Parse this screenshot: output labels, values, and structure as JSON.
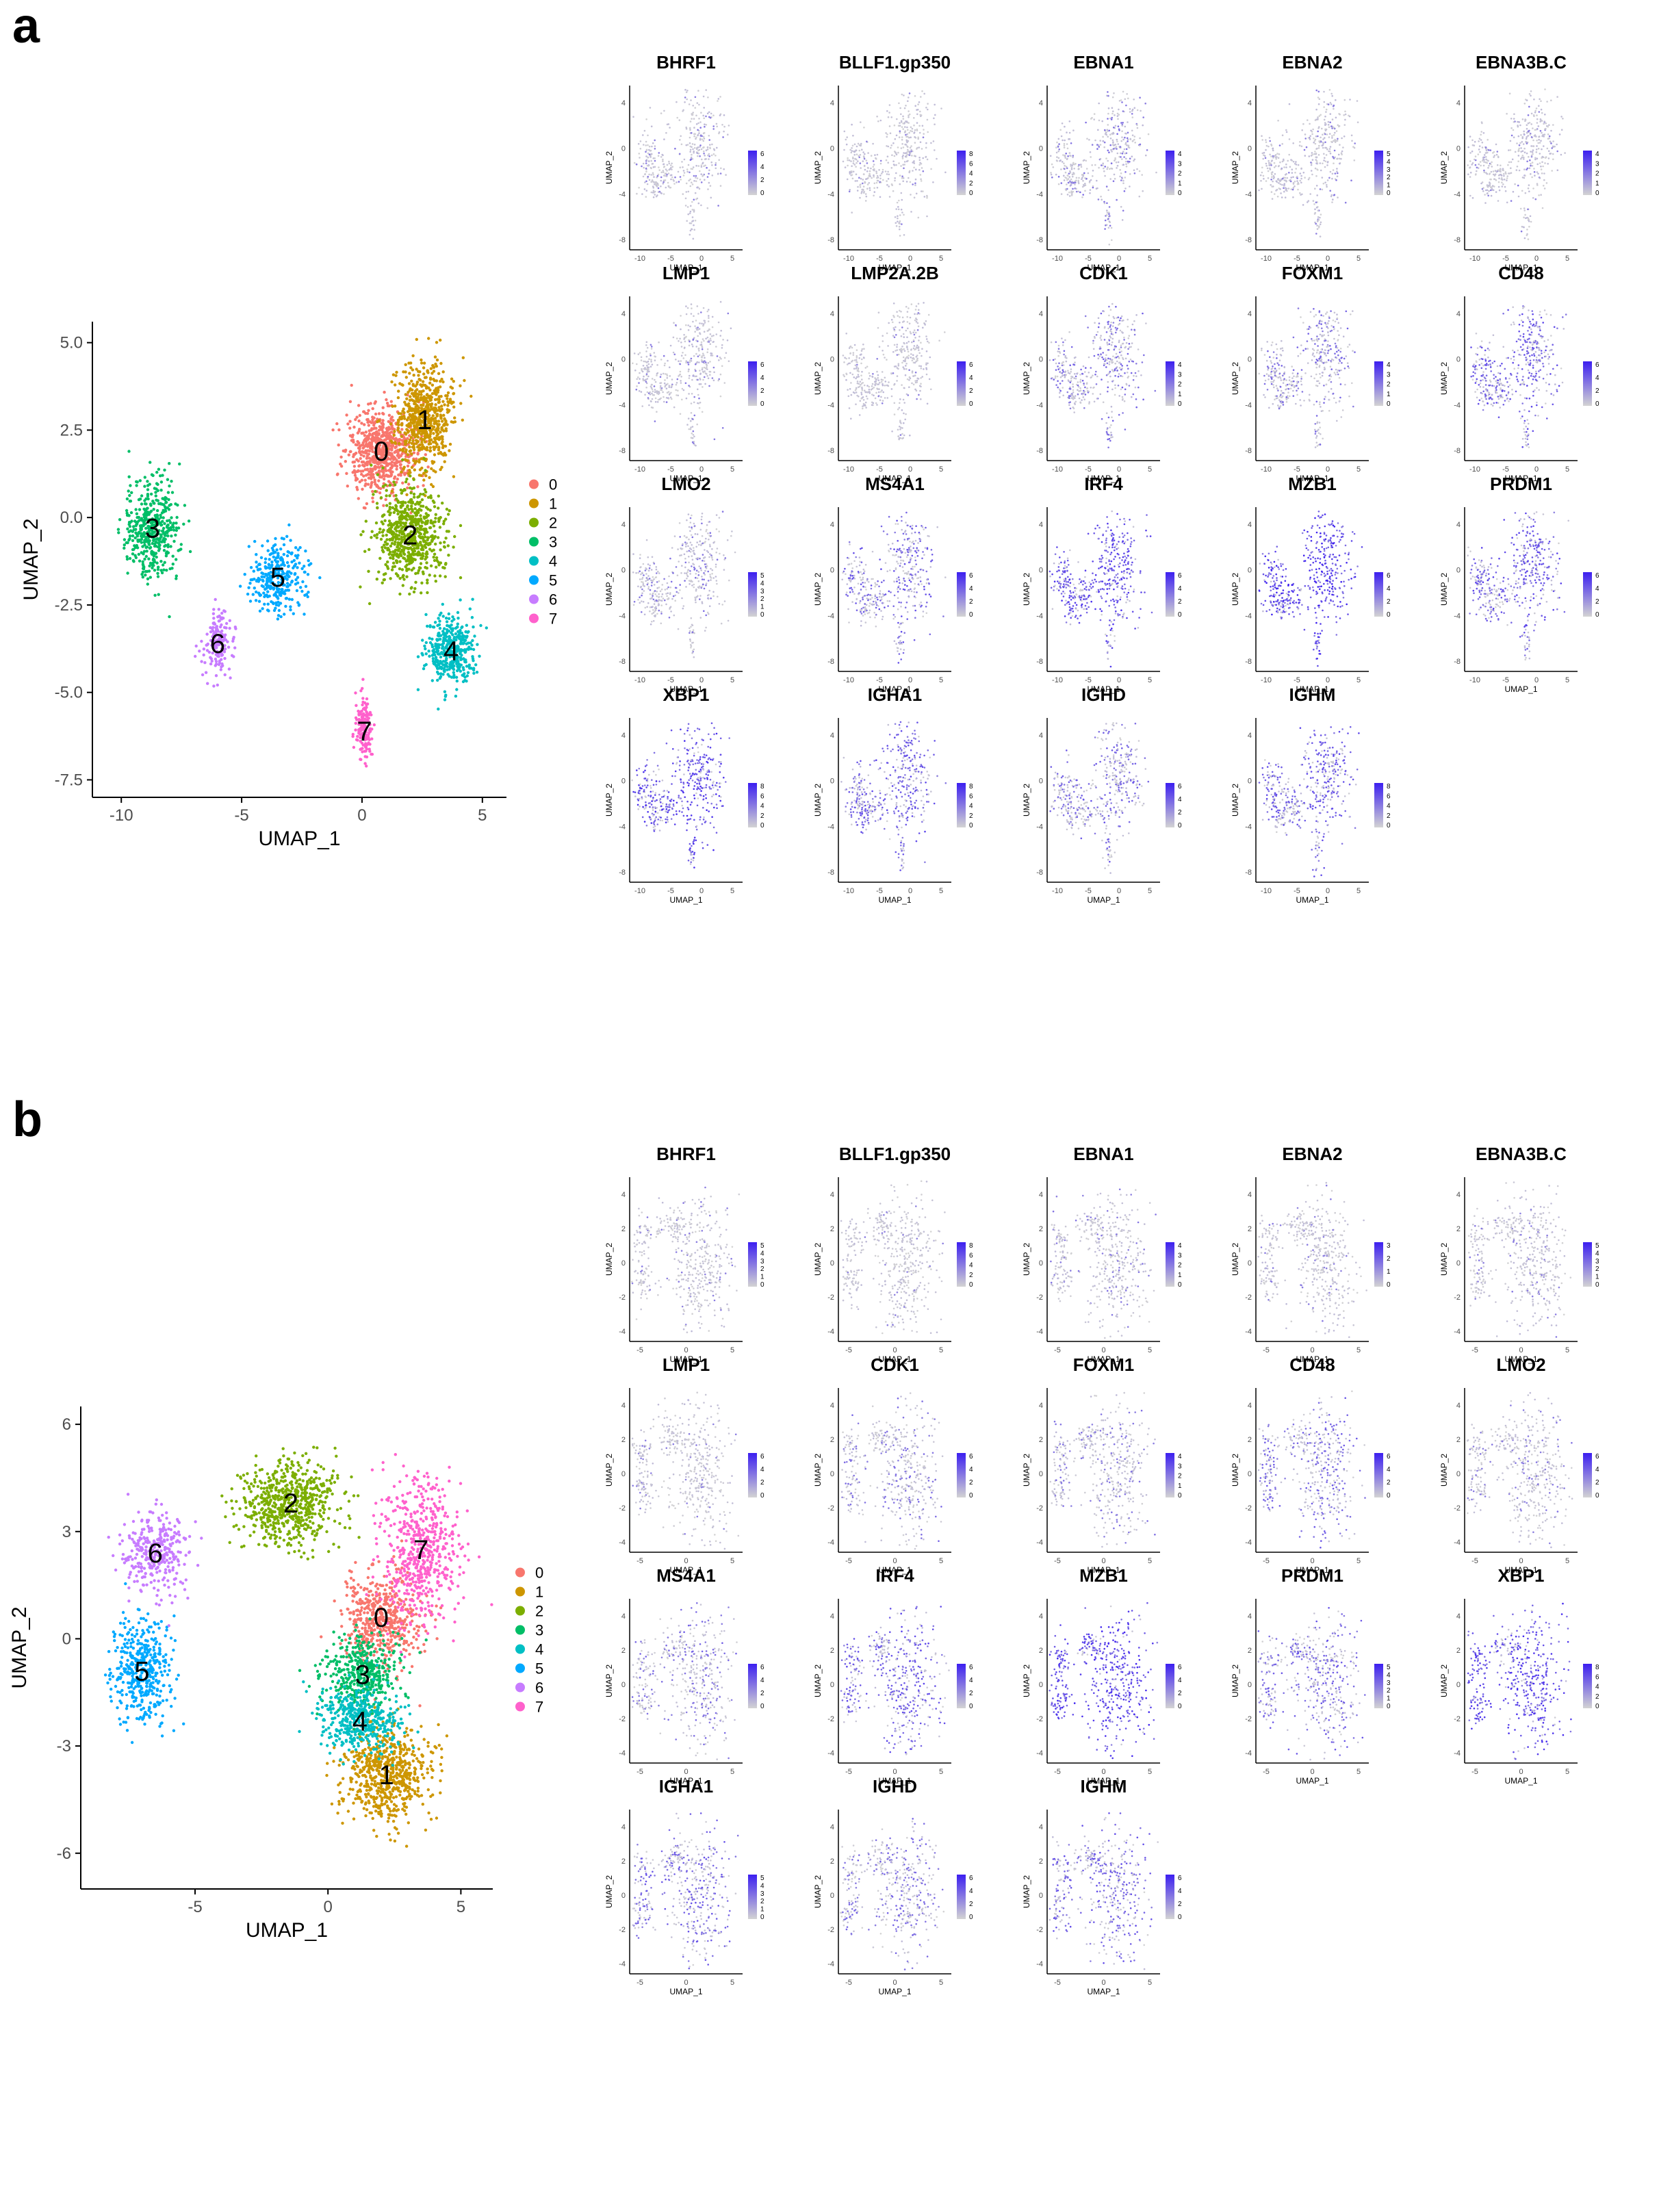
{
  "colors": {
    "clusters": [
      "#F8766D",
      "#CD9600",
      "#7CAE00",
      "#00BE67",
      "#00BFC4",
      "#00A9FF",
      "#C77CFF",
      "#FF61CC"
    ],
    "feature_low": "#D3D3D3",
    "feature_high": "#3C1FF0",
    "axis": "#000000"
  },
  "chart_data": [
    {
      "panel": "a",
      "type": "scatter",
      "subtype": "umap-cluster",
      "xlabel": "UMAP_1",
      "ylabel": "UMAP_2",
      "xlim": [
        -11.2,
        6.0
      ],
      "ylim": [
        -8.0,
        5.6
      ],
      "xticks": [
        "-10",
        "-5",
        "0",
        "5"
      ],
      "xtick_values": [
        -10,
        -5,
        0,
        5
      ],
      "yticks": [
        "5.0",
        "2.5",
        "0.0",
        "-2.5",
        "-5.0",
        "-7.5"
      ],
      "ytick_values": [
        5.0,
        2.5,
        0.0,
        -2.5,
        -5.0,
        -7.5
      ],
      "legend": [
        "0",
        "1",
        "2",
        "3",
        "4",
        "5",
        "6",
        "7"
      ],
      "clusters": [
        {
          "label": "0",
          "cx": 0.8,
          "cy": 1.9,
          "sx": 1.3,
          "sy": 1.1,
          "n": 700
        },
        {
          "label": "1",
          "cx": 2.6,
          "cy": 2.8,
          "sx": 1.1,
          "sy": 1.4,
          "n": 650
        },
        {
          "label": "2",
          "cx": 2.0,
          "cy": -0.5,
          "sx": 1.3,
          "sy": 1.2,
          "n": 650
        },
        {
          "label": "3",
          "cx": -8.7,
          "cy": -0.3,
          "sx": 1.0,
          "sy": 1.3,
          "n": 450
        },
        {
          "label": "4",
          "cx": 3.7,
          "cy": -3.8,
          "sx": 1.0,
          "sy": 0.9,
          "n": 400
        },
        {
          "label": "5",
          "cx": -3.5,
          "cy": -1.7,
          "sx": 1.1,
          "sy": 0.9,
          "n": 300
        },
        {
          "label": "6",
          "cx": -6.0,
          "cy": -3.6,
          "sx": 0.5,
          "sy": 0.8,
          "n": 160
        },
        {
          "label": "7",
          "cx": 0.1,
          "cy": -6.1,
          "sx": 0.35,
          "sy": 0.8,
          "n": 160
        }
      ]
    },
    {
      "panel": "b",
      "type": "scatter",
      "subtype": "umap-cluster",
      "xlabel": "UMAP_1",
      "ylabel": "UMAP_2",
      "xlim": [
        -9.3,
        6.2
      ],
      "ylim": [
        -7.0,
        6.5
      ],
      "xticks": [
        "-5",
        "0",
        "5"
      ],
      "xtick_values": [
        -5,
        0,
        5
      ],
      "yticks": [
        "6",
        "3",
        "0",
        "-3",
        "-6"
      ],
      "ytick_values": [
        6,
        3,
        0,
        -3,
        -6
      ],
      "legend": [
        "0",
        "1",
        "2",
        "3",
        "4",
        "5",
        "6",
        "7"
      ],
      "clusters": [
        {
          "label": "0",
          "cx": 2.0,
          "cy": 0.6,
          "sx": 1.3,
          "sy": 1.2,
          "n": 500
        },
        {
          "label": "1",
          "cx": 2.2,
          "cy": -3.8,
          "sx": 1.5,
          "sy": 1.2,
          "n": 650
        },
        {
          "label": "2",
          "cx": -1.4,
          "cy": 3.8,
          "sx": 1.7,
          "sy": 1.1,
          "n": 650
        },
        {
          "label": "3",
          "cx": 1.3,
          "cy": -1.0,
          "sx": 1.3,
          "sy": 1.0,
          "n": 420
        },
        {
          "label": "4",
          "cx": 1.2,
          "cy": -2.3,
          "sx": 1.4,
          "sy": 0.9,
          "n": 420
        },
        {
          "label": "5",
          "cx": -7.0,
          "cy": -0.9,
          "sx": 1.0,
          "sy": 1.3,
          "n": 420
        },
        {
          "label": "6",
          "cx": -6.5,
          "cy": 2.4,
          "sx": 1.1,
          "sy": 1.0,
          "n": 320
        },
        {
          "label": "7",
          "cx": 3.5,
          "cy": 2.5,
          "sx": 1.3,
          "sy": 1.8,
          "n": 550
        }
      ]
    },
    {
      "panel": "a",
      "type": "scatter",
      "subtype": "feature-grid",
      "xlabel": "UMAP_1",
      "ylabel": "UMAP_2",
      "xticks": [
        "-10",
        "-5",
        "0",
        "5"
      ],
      "yticks": [
        "4",
        "0",
        "-4",
        "-8"
      ],
      "features": [
        {
          "name": "BHRF1",
          "max": 6,
          "ticks": [
            "6",
            "4",
            "2",
            "0"
          ],
          "level": 0.12
        },
        {
          "name": "BLLF1.gp350",
          "max": 8,
          "ticks": [
            "8",
            "6",
            "4",
            "2",
            "0"
          ],
          "level": 0.04
        },
        {
          "name": "EBNA1",
          "max": 4,
          "ticks": [
            "4",
            "3",
            "2",
            "1",
            "0"
          ],
          "level": 0.2
        },
        {
          "name": "EBNA2",
          "max": 5,
          "ticks": [
            "5",
            "4",
            "3",
            "2",
            "1",
            "0"
          ],
          "level": 0.1
        },
        {
          "name": "EBNA3B.C",
          "max": 4,
          "ticks": [
            "4",
            "3",
            "2",
            "1",
            "0"
          ],
          "level": 0.1
        },
        {
          "name": "LMP1",
          "max": 6,
          "ticks": [
            "6",
            "4",
            "2",
            "0"
          ],
          "level": 0.12
        },
        {
          "name": "LMP2A.2B",
          "max": 6,
          "ticks": [
            "6",
            "4",
            "2",
            "0"
          ],
          "level": 0.05
        },
        {
          "name": "CDK1",
          "max": 4,
          "ticks": [
            "4",
            "3",
            "2",
            "1",
            "0"
          ],
          "level": 0.35
        },
        {
          "name": "FOXM1",
          "max": 4,
          "ticks": [
            "4",
            "3",
            "2",
            "1",
            "0"
          ],
          "level": 0.3
        },
        {
          "name": "CD48",
          "max": 6,
          "ticks": [
            "6",
            "4",
            "2",
            "0"
          ],
          "level": 0.55
        },
        {
          "name": "LMO2",
          "max": 5,
          "ticks": [
            "5",
            "4",
            "3",
            "2",
            "1",
            "0"
          ],
          "level": 0.2
        },
        {
          "name": "MS4A1",
          "max": 6,
          "ticks": [
            "6",
            "4",
            "2",
            "0"
          ],
          "level": 0.5
        },
        {
          "name": "IRF4",
          "max": 6,
          "ticks": [
            "6",
            "4",
            "2",
            "0"
          ],
          "level": 0.75
        },
        {
          "name": "MZB1",
          "max": 6,
          "ticks": [
            "6",
            "4",
            "2",
            "0"
          ],
          "level": 0.9
        },
        {
          "name": "PRDM1",
          "max": 6,
          "ticks": [
            "6",
            "4",
            "2",
            "0"
          ],
          "level": 0.6
        },
        {
          "name": "XBP1",
          "max": 8,
          "ticks": [
            "8",
            "6",
            "4",
            "2",
            "0"
          ],
          "level": 0.75
        },
        {
          "name": "IGHA1",
          "max": 8,
          "ticks": [
            "8",
            "6",
            "4",
            "2",
            "0"
          ],
          "level": 0.55
        },
        {
          "name": "IGHD",
          "max": 6,
          "ticks": [
            "6",
            "4",
            "2",
            "0"
          ],
          "level": 0.4
        },
        {
          "name": "IGHM",
          "max": 8,
          "ticks": [
            "8",
            "6",
            "4",
            "2",
            "0"
          ],
          "level": 0.55
        }
      ]
    },
    {
      "panel": "b",
      "type": "scatter",
      "subtype": "feature-grid",
      "xlabel": "UMAP_1",
      "ylabel": "UMAP_2",
      "xticks": [
        "-5",
        "0",
        "5"
      ],
      "yticks": [
        "4",
        "2",
        "0",
        "-2",
        "-4"
      ],
      "features": [
        {
          "name": "BHRF1",
          "max": 5,
          "ticks": [
            "5",
            "4",
            "3",
            "2",
            "1",
            "0"
          ],
          "level": 0.1
        },
        {
          "name": "BLLF1.gp350",
          "max": 8,
          "ticks": [
            "8",
            "6",
            "4",
            "2",
            "0"
          ],
          "level": 0.03
        },
        {
          "name": "EBNA1",
          "max": 4,
          "ticks": [
            "4",
            "3",
            "2",
            "1",
            "0"
          ],
          "level": 0.15
        },
        {
          "name": "EBNA2",
          "max": 3,
          "ticks": [
            "3",
            "2",
            "1",
            "0"
          ],
          "level": 0.08
        },
        {
          "name": "EBNA3B.C",
          "max": 5,
          "ticks": [
            "5",
            "4",
            "3",
            "2",
            "1",
            "0"
          ],
          "level": 0.1
        },
        {
          "name": "LMP1",
          "max": 6,
          "ticks": [
            "6",
            "4",
            "2",
            "0"
          ],
          "level": 0.08
        },
        {
          "name": "CDK1",
          "max": 6,
          "ticks": [
            "6",
            "4",
            "2",
            "0"
          ],
          "level": 0.25
        },
        {
          "name": "FOXM1",
          "max": 4,
          "ticks": [
            "4",
            "3",
            "2",
            "1",
            "0"
          ],
          "level": 0.2
        },
        {
          "name": "CD48",
          "max": 6,
          "ticks": [
            "6",
            "4",
            "2",
            "0"
          ],
          "level": 0.4
        },
        {
          "name": "LMO2",
          "max": 6,
          "ticks": [
            "6",
            "4",
            "2",
            "0"
          ],
          "level": 0.15
        },
        {
          "name": "MS4A1",
          "max": 6,
          "ticks": [
            "6",
            "4",
            "2",
            "0"
          ],
          "level": 0.3
        },
        {
          "name": "IRF4",
          "max": 6,
          "ticks": [
            "6",
            "4",
            "2",
            "0"
          ],
          "level": 0.55
        },
        {
          "name": "MZB1",
          "max": 6,
          "ticks": [
            "6",
            "4",
            "2",
            "0"
          ],
          "level": 0.85
        },
        {
          "name": "PRDM1",
          "max": 5,
          "ticks": [
            "5",
            "4",
            "3",
            "2",
            "1",
            "0"
          ],
          "level": 0.45
        },
        {
          "name": "XBP1",
          "max": 8,
          "ticks": [
            "8",
            "6",
            "4",
            "2",
            "0"
          ],
          "level": 0.8
        },
        {
          "name": "IGHA1",
          "max": 5,
          "ticks": [
            "5",
            "4",
            "3",
            "2",
            "1",
            "0"
          ],
          "level": 0.45
        },
        {
          "name": "IGHD",
          "max": 6,
          "ticks": [
            "6",
            "4",
            "2",
            "0"
          ],
          "level": 0.35
        },
        {
          "name": "IGHM",
          "max": 6,
          "ticks": [
            "6",
            "4",
            "2",
            "0"
          ],
          "level": 0.5
        }
      ]
    }
  ],
  "panel_labels": {
    "a": "a",
    "b": "b"
  }
}
